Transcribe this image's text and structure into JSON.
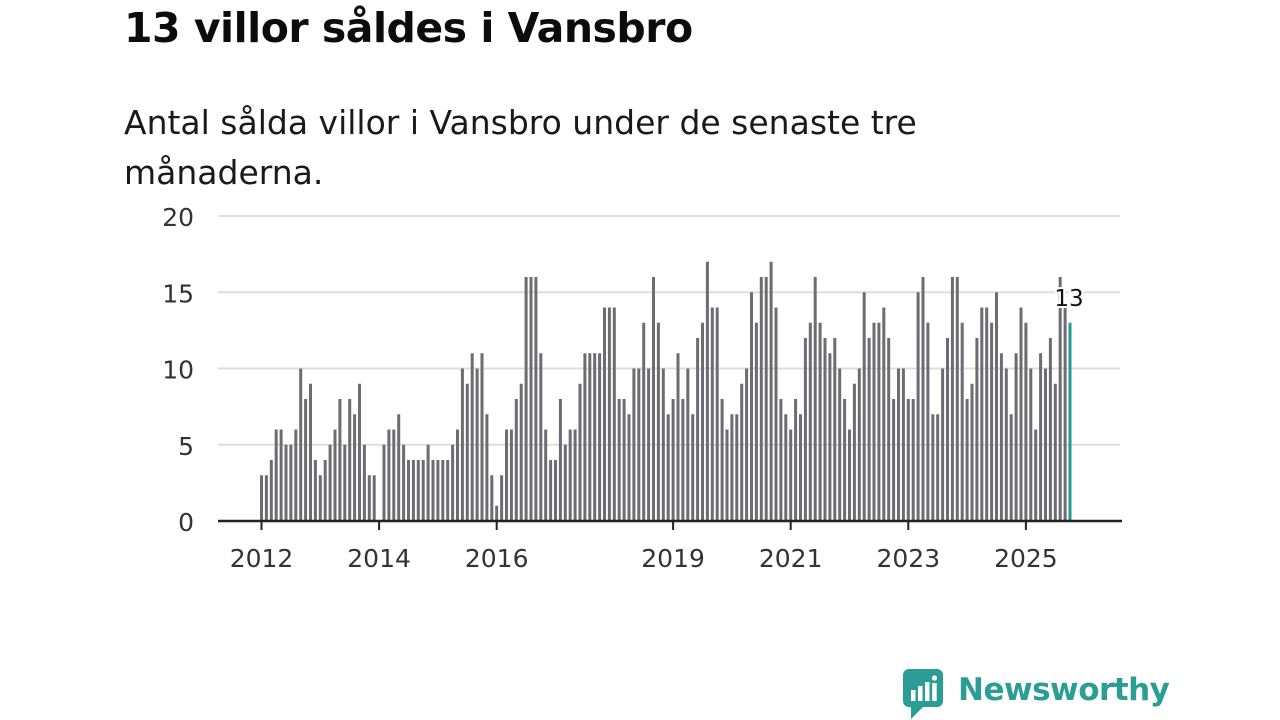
{
  "header": {
    "title": "13 villor såldes i Vansbro",
    "subtitle": "Antal sålda villor i Vansbro under de senaste tre månaderna."
  },
  "chart_data": {
    "type": "bar",
    "title": "13 villor såldes i Vansbro",
    "subtitle": "Antal sålda villor i Vansbro under de senaste tre månaderna.",
    "xlabel": "",
    "ylabel": "",
    "ylim": [
      0,
      20
    ],
    "yticks": [
      0,
      5,
      10,
      15,
      20
    ],
    "grid": true,
    "x_start": "2012-01",
    "x_tick_labels": [
      "2012",
      "2014",
      "2016",
      "2019",
      "2021",
      "2023",
      "2025"
    ],
    "x_tick_positions": [
      "2012-01",
      "2014-01",
      "2016-01",
      "2019-01",
      "2021-01",
      "2023-01",
      "2025-01"
    ],
    "values": [
      3,
      3,
      4,
      6,
      6,
      5,
      5,
      6,
      10,
      8,
      9,
      4,
      3,
      4,
      5,
      6,
      8,
      5,
      8,
      7,
      9,
      5,
      3,
      3,
      0,
      5,
      6,
      6,
      7,
      5,
      4,
      4,
      4,
      4,
      5,
      4,
      4,
      4,
      4,
      5,
      6,
      10,
      9,
      11,
      10,
      11,
      7,
      3,
      1,
      3,
      6,
      6,
      8,
      9,
      16,
      16,
      16,
      11,
      6,
      4,
      4,
      8,
      5,
      6,
      6,
      9,
      11,
      11,
      11,
      11,
      14,
      14,
      14,
      8,
      8,
      7,
      10,
      10,
      13,
      10,
      16,
      13,
      10,
      7,
      8,
      11,
      8,
      10,
      7,
      12,
      13,
      17,
      14,
      14,
      8,
      6,
      7,
      7,
      9,
      10,
      15,
      13,
      16,
      16,
      17,
      14,
      8,
      7,
      6,
      8,
      7,
      12,
      13,
      16,
      13,
      12,
      11,
      12,
      10,
      8,
      6,
      9,
      10,
      15,
      12,
      13,
      13,
      14,
      12,
      8,
      10,
      10,
      8,
      8,
      15,
      16,
      13,
      7,
      7,
      10,
      12,
      16,
      16,
      13,
      8,
      9,
      12,
      14,
      14,
      13,
      15,
      11,
      10,
      7,
      11,
      14,
      13,
      10,
      6,
      11,
      10,
      12,
      9,
      16,
      14,
      13
    ],
    "series": [
      {
        "name": "Antal sålda villor",
        "values": "values",
        "color": "#6d6c73"
      }
    ],
    "highlight": {
      "index": 165,
      "value": 13,
      "label": "13",
      "color": "#1f9b92"
    }
  },
  "colors": {
    "bar": "#6d6c73",
    "highlight": "#1f9b92",
    "grid": "#dedede",
    "axis": "#222222",
    "brand": "#2a9d94"
  },
  "footer": {
    "logo_text": "Newsworthy",
    "logo_icon": "newsworthy-chart-bubble-icon"
  }
}
